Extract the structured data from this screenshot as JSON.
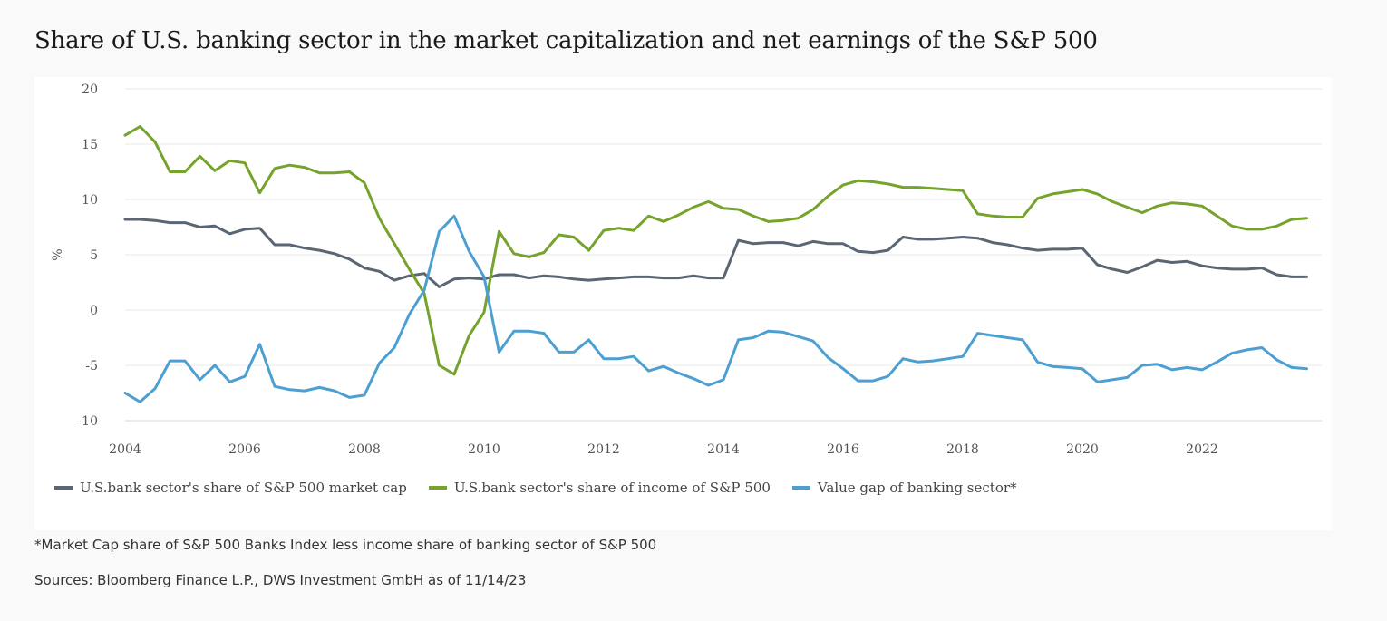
{
  "title": "Share of U.S. banking sector in the market capitalization and net earnings of the S&P 500",
  "footnote": "*Market Cap share of S&P 500 Banks Index less income share of banking sector of S&P 500",
  "sources": "Sources: Bloomberg Finance L.P., DWS Investment GmbH as of 11/14/23",
  "colors": {
    "market_cap": "#5a6673",
    "income": "#76a32c",
    "value_gap": "#4c9fd2",
    "grid": "#e8e8e8",
    "axis": "#d6d6d6"
  },
  "chart_data": {
    "type": "line",
    "title": "",
    "xlabel": "",
    "ylabel": "%",
    "xlim": [
      2004,
      2024
    ],
    "ylim": [
      -10,
      20
    ],
    "yticks": [
      -10,
      -5,
      0,
      5,
      10,
      15,
      20
    ],
    "ytick_labels": [
      "-10",
      "-5",
      "0",
      "5",
      "10",
      "15",
      "20"
    ],
    "xticks": [
      2004,
      2006,
      2008,
      2010,
      2012,
      2014,
      2016,
      2018,
      2020,
      2022
    ],
    "xtick_labels": [
      "2004",
      "2006",
      "2008",
      "2010",
      "2012",
      "2014",
      "2016",
      "2018",
      "2020",
      "2022"
    ],
    "grid": "horizontal",
    "legend_position": "bottom",
    "series": [
      {
        "name": "U.S.bank sector's share of S&P 500 market cap",
        "color_key": "market_cap",
        "x": [
          2004.0,
          2004.25,
          2004.5,
          2004.75,
          2005.0,
          2005.25,
          2005.5,
          2005.75,
          2006.0,
          2006.25,
          2006.5,
          2006.75,
          2007.0,
          2007.25,
          2007.5,
          2007.75,
          2008.0,
          2008.25,
          2008.5,
          2008.75,
          2009.0,
          2009.25,
          2009.5,
          2009.75,
          2010.0,
          2010.25,
          2010.5,
          2010.75,
          2011.0,
          2011.25,
          2011.5,
          2011.75,
          2012.0,
          2012.25,
          2012.5,
          2012.75,
          2013.0,
          2013.25,
          2013.5,
          2013.75,
          2014.0,
          2014.25,
          2014.5,
          2014.75,
          2015.0,
          2015.25,
          2015.5,
          2015.75,
          2016.0,
          2016.25,
          2016.5,
          2016.75,
          2017.0,
          2017.25,
          2017.5,
          2017.75,
          2018.0,
          2018.25,
          2018.5,
          2018.75,
          2019.0,
          2019.25,
          2019.5,
          2019.75,
          2020.0,
          2020.25,
          2020.5,
          2020.75,
          2021.0,
          2021.25,
          2021.5,
          2021.75,
          2022.0,
          2022.25,
          2022.5,
          2022.75,
          2023.0,
          2023.25,
          2023.5,
          2023.75
        ],
        "values": [
          8.2,
          8.2,
          8.1,
          7.9,
          7.9,
          7.5,
          7.6,
          6.9,
          7.3,
          7.4,
          5.9,
          5.9,
          5.6,
          5.4,
          5.1,
          4.6,
          3.8,
          3.5,
          2.7,
          3.1,
          3.3,
          2.1,
          2.8,
          2.9,
          2.8,
          3.2,
          3.2,
          2.9,
          3.1,
          3.0,
          2.8,
          2.7,
          2.8,
          2.9,
          3.0,
          3.0,
          2.9,
          2.9,
          3.1,
          2.9,
          2.9,
          6.3,
          6.0,
          6.1,
          6.1,
          5.8,
          6.2,
          6.0,
          6.0,
          5.3,
          5.2,
          5.4,
          6.6,
          6.4,
          6.4,
          6.5,
          6.6,
          6.5,
          6.1,
          5.9,
          5.6,
          5.4,
          5.5,
          5.5,
          5.6,
          4.1,
          3.7,
          3.4,
          3.9,
          4.5,
          4.3,
          4.4,
          4.0,
          3.8,
          3.7,
          3.7,
          3.8,
          3.2,
          3.0,
          3.0
        ]
      },
      {
        "name": "U.S.bank sector's share of income of S&P 500",
        "color_key": "income",
        "x": [
          2004.0,
          2004.25,
          2004.5,
          2004.75,
          2005.0,
          2005.25,
          2005.5,
          2005.75,
          2006.0,
          2006.25,
          2006.5,
          2006.75,
          2007.0,
          2007.25,
          2007.5,
          2007.75,
          2008.0,
          2008.25,
          2008.5,
          2008.75,
          2009.0,
          2009.25,
          2009.5,
          2009.75,
          2010.0,
          2010.25,
          2010.5,
          2010.75,
          2011.0,
          2011.25,
          2011.5,
          2011.75,
          2012.0,
          2012.25,
          2012.5,
          2012.75,
          2013.0,
          2013.25,
          2013.5,
          2013.75,
          2014.0,
          2014.25,
          2014.5,
          2014.75,
          2015.0,
          2015.25,
          2015.5,
          2015.75,
          2016.0,
          2016.25,
          2016.5,
          2016.75,
          2017.0,
          2017.25,
          2017.5,
          2017.75,
          2018.0,
          2018.25,
          2018.5,
          2018.75,
          2019.0,
          2019.25,
          2019.5,
          2019.75,
          2020.0,
          2020.25,
          2020.5,
          2020.75,
          2021.0,
          2021.25,
          2021.5,
          2021.75,
          2022.0,
          2022.25,
          2022.5,
          2022.75,
          2023.0,
          2023.25,
          2023.5,
          2023.75
        ],
        "values": [
          15.8,
          16.6,
          15.2,
          12.5,
          12.5,
          13.9,
          12.6,
          13.5,
          13.3,
          10.6,
          12.8,
          13.1,
          12.9,
          12.4,
          12.4,
          12.5,
          11.5,
          8.3,
          6.0,
          3.7,
          1.5,
          -5.0,
          -5.8,
          -2.3,
          -0.2,
          7.1,
          5.1,
          4.8,
          5.2,
          6.8,
          6.6,
          5.4,
          7.2,
          7.4,
          7.2,
          8.5,
          8.0,
          8.6,
          9.3,
          9.8,
          9.2,
          9.1,
          8.5,
          8.0,
          8.1,
          8.3,
          9.1,
          10.3,
          11.3,
          11.7,
          11.6,
          11.4,
          11.1,
          11.1,
          11.0,
          10.9,
          10.8,
          8.7,
          8.5,
          8.4,
          8.4,
          10.1,
          10.5,
          10.7,
          10.9,
          10.5,
          9.8,
          9.3,
          8.8,
          9.4,
          9.7,
          9.6,
          9.4,
          8.5,
          7.6,
          7.3,
          7.3,
          7.6,
          8.2,
          8.3
        ]
      },
      {
        "name": "Value gap of banking sector*",
        "color_key": "value_gap",
        "x": [
          2004.0,
          2004.25,
          2004.5,
          2004.75,
          2005.0,
          2005.25,
          2005.5,
          2005.75,
          2006.0,
          2006.25,
          2006.5,
          2006.75,
          2007.0,
          2007.25,
          2007.5,
          2007.75,
          2008.0,
          2008.25,
          2008.5,
          2008.75,
          2009.0,
          2009.25,
          2009.5,
          2009.75,
          2010.0,
          2010.25,
          2010.5,
          2010.75,
          2011.0,
          2011.25,
          2011.5,
          2011.75,
          2012.0,
          2012.25,
          2012.5,
          2012.75,
          2013.0,
          2013.25,
          2013.5,
          2013.75,
          2014.0,
          2014.25,
          2014.5,
          2014.75,
          2015.0,
          2015.25,
          2015.5,
          2015.75,
          2016.0,
          2016.25,
          2016.5,
          2016.75,
          2017.0,
          2017.25,
          2017.5,
          2017.75,
          2018.0,
          2018.25,
          2018.5,
          2018.75,
          2019.0,
          2019.25,
          2019.5,
          2019.75,
          2020.0,
          2020.25,
          2020.5,
          2020.75,
          2021.0,
          2021.25,
          2021.5,
          2021.75,
          2022.0,
          2022.25,
          2022.5,
          2022.75,
          2023.0,
          2023.25,
          2023.5,
          2023.75
        ],
        "values": [
          -7.5,
          -8.3,
          -7.1,
          -4.6,
          -4.6,
          -6.3,
          -5.0,
          -6.5,
          -6.0,
          -3.1,
          -6.9,
          -7.2,
          -7.3,
          -7.0,
          -7.3,
          -7.9,
          -7.7,
          -4.8,
          -3.4,
          -0.4,
          1.8,
          7.1,
          8.5,
          5.3,
          3.0,
          -3.8,
          -1.9,
          -1.9,
          -2.1,
          -3.8,
          -3.8,
          -2.7,
          -4.4,
          -4.4,
          -4.2,
          -5.5,
          -5.1,
          -5.7,
          -6.2,
          -6.8,
          -6.3,
          -2.7,
          -2.5,
          -1.9,
          -2.0,
          -2.4,
          -2.8,
          -4.3,
          -5.3,
          -6.4,
          -6.4,
          -6.0,
          -4.4,
          -4.7,
          -4.6,
          -4.4,
          -4.2,
          -2.1,
          -2.3,
          -2.5,
          -2.7,
          -4.7,
          -5.1,
          -5.2,
          -5.3,
          -6.5,
          -6.3,
          -6.1,
          -5.0,
          -4.9,
          -5.4,
          -5.2,
          -5.4,
          -4.7,
          -3.9,
          -3.6,
          -3.4,
          -4.5,
          -5.2,
          -5.3
        ]
      }
    ]
  }
}
